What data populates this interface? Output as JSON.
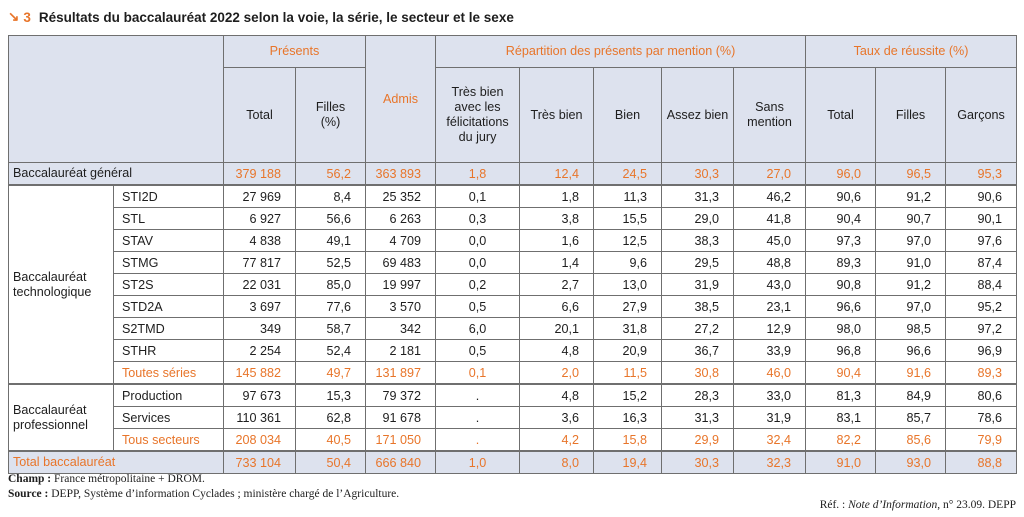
{
  "title": {
    "arrow": "↘",
    "number": "3",
    "text": "Résultats du baccalauréat 2022 selon la voie, la série, le secteur et le sexe"
  },
  "header": {
    "group_presents": "Présents",
    "admis": "Admis",
    "group_repartition": "Répartition des présents par mention (%)",
    "group_taux": "Taux de réussite (%)",
    "cols": {
      "total": "Total",
      "filles_pct": "Filles\n(%)",
      "tbf": "Très bien avec les félicitations du jury",
      "tb": "Très bien",
      "bien": "Bien",
      "ab": "Assez bien",
      "sans": "Sans mention",
      "taux_total": "Total",
      "taux_filles": "Filles",
      "taux_garcons": "Garçons"
    }
  },
  "rows": {
    "general": {
      "label": "Baccalauréat général",
      "values": [
        "379 188",
        "56,2",
        "363 893",
        "1,8",
        "12,4",
        "24,5",
        "30,3",
        "27,0",
        "96,0",
        "96,5",
        "95,3"
      ]
    },
    "techno_label": "Baccalauréat technologique",
    "techno": [
      {
        "label": "STI2D",
        "values": [
          "27 969",
          "8,4",
          "25 352",
          "0,1",
          "1,8",
          "11,3",
          "31,3",
          "46,2",
          "90,6",
          "91,2",
          "90,6"
        ]
      },
      {
        "label": "STL",
        "values": [
          "6 927",
          "56,6",
          "6 263",
          "0,3",
          "3,8",
          "15,5",
          "29,0",
          "41,8",
          "90,4",
          "90,7",
          "90,1"
        ]
      },
      {
        "label": "STAV",
        "values": [
          "4 838",
          "49,1",
          "4 709",
          "0,0",
          "1,6",
          "12,5",
          "38,3",
          "45,0",
          "97,3",
          "97,0",
          "97,6"
        ]
      },
      {
        "label": "STMG",
        "values": [
          "77 817",
          "52,5",
          "69 483",
          "0,0",
          "1,4",
          "9,6",
          "29,5",
          "48,8",
          "89,3",
          "91,0",
          "87,4"
        ]
      },
      {
        "label": "ST2S",
        "values": [
          "22 031",
          "85,0",
          "19 997",
          "0,2",
          "2,7",
          "13,0",
          "31,9",
          "43,0",
          "90,8",
          "91,2",
          "88,4"
        ]
      },
      {
        "label": "STD2A",
        "values": [
          "3 697",
          "77,6",
          "3 570",
          "0,5",
          "6,6",
          "27,9",
          "38,5",
          "23,1",
          "96,6",
          "97,0",
          "95,2"
        ]
      },
      {
        "label": "S2TMD",
        "values": [
          "349",
          "58,7",
          "342",
          "6,0",
          "20,1",
          "31,8",
          "27,2",
          "12,9",
          "98,0",
          "98,5",
          "97,2"
        ]
      },
      {
        "label": "STHR",
        "values": [
          "2 254",
          "52,4",
          "2 181",
          "0,5",
          "4,8",
          "20,9",
          "36,7",
          "33,9",
          "96,8",
          "96,6",
          "96,9"
        ]
      },
      {
        "label": "Toutes séries",
        "values": [
          "145 882",
          "49,7",
          "131 897",
          "0,1",
          "2,0",
          "11,5",
          "30,8",
          "46,0",
          "90,4",
          "91,6",
          "89,3"
        ]
      }
    ],
    "pro_label": "Baccalauréat professionnel",
    "pro": [
      {
        "label": "Production",
        "values": [
          "97 673",
          "15,3",
          "79 372",
          ".",
          "4,8",
          "15,2",
          "28,3",
          "33,0",
          "81,3",
          "84,9",
          "80,6"
        ]
      },
      {
        "label": "Services",
        "values": [
          "110 361",
          "62,8",
          "91 678",
          ".",
          "3,6",
          "16,3",
          "31,3",
          "31,9",
          "83,1",
          "85,7",
          "78,6"
        ]
      },
      {
        "label": "Tous secteurs",
        "values": [
          "208 034",
          "40,5",
          "171 050",
          ".",
          "4,2",
          "15,8",
          "29,9",
          "32,4",
          "82,2",
          "85,6",
          "79,9"
        ]
      }
    ],
    "total": {
      "label": "Total baccalauréat",
      "values": [
        "733 104",
        "50,4",
        "666 840",
        "1,0",
        "8,0",
        "19,4",
        "30,3",
        "32,3",
        "91,0",
        "93,0",
        "88,8"
      ]
    }
  },
  "notes": {
    "champ_label": "Champ :",
    "champ_text": " France métropolitaine + DROM.",
    "source_label": "Source :",
    "source_text": " DEPP, Système d’information Cyclades ; ministère chargé de l’Agriculture."
  },
  "ref": {
    "prefix": "Réf. : ",
    "pub": "Note d’Information",
    "suffix": ", n° 23.09. DEPP"
  },
  "colors": {
    "accent": "#e8752a",
    "header_bg": "#dde2ee",
    "border": "#6f6f6f"
  }
}
